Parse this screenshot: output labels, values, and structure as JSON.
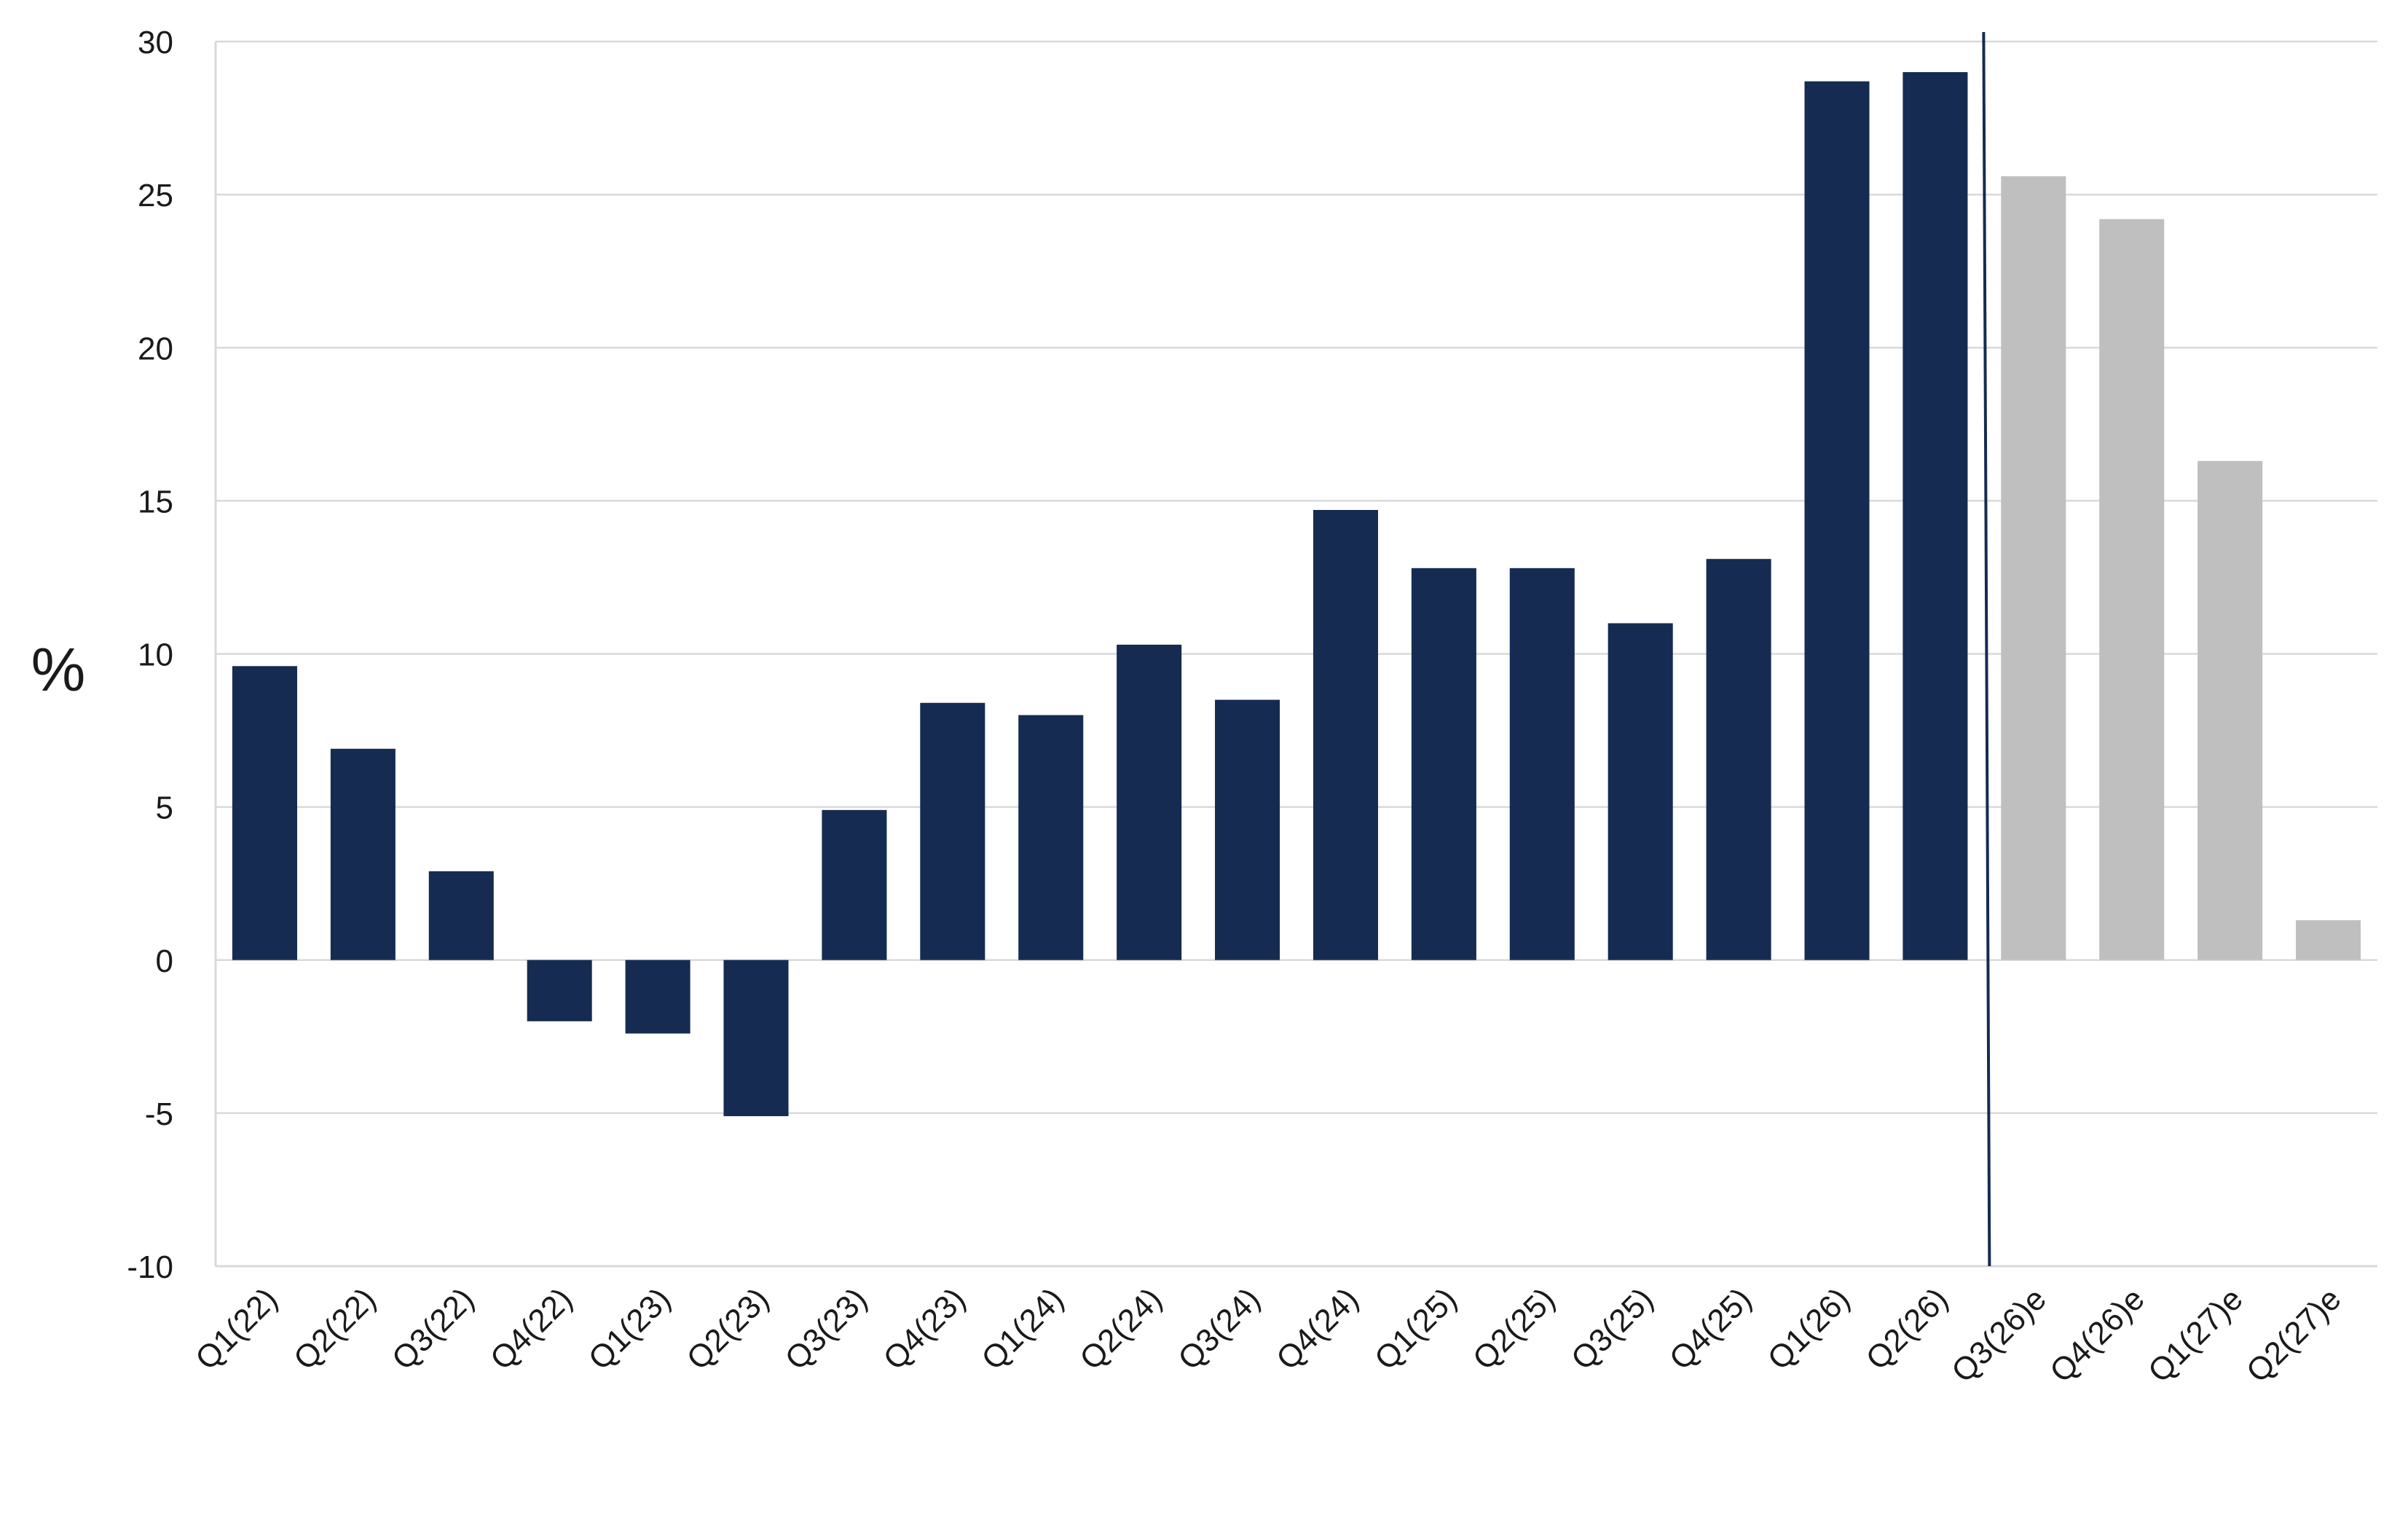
{
  "chart_data": {
    "type": "bar",
    "title": "",
    "xlabel": "",
    "ylabel": "%",
    "ylim": [
      -10,
      30
    ],
    "yticks": [
      -10,
      -5,
      0,
      5,
      10,
      15,
      20,
      25,
      30
    ],
    "grid": true,
    "categories": [
      "Q1(22)",
      "Q2(22)",
      "Q3(22)",
      "Q4(22)",
      "Q1(23)",
      "Q2(23)",
      "Q3(23)",
      "Q4(23)",
      "Q1(24)",
      "Q2(24)",
      "Q3(24)",
      "Q4(24)",
      "Q1(25)",
      "Q2(25)",
      "Q3(25)",
      "Q4(25)",
      "Q1(26)",
      "Q2(26)",
      "Q3(26)e",
      "Q4(26)e",
      "Q1(27)e",
      "Q2(27)e"
    ],
    "series": [
      {
        "values": [
          9.6,
          6.9,
          2.9,
          -2.0,
          -2.4,
          -5.1,
          4.9,
          8.4,
          8.0,
          10.3,
          8.5,
          14.7,
          12.8,
          12.8,
          11.0,
          13.1,
          28.7,
          29.0,
          25.6,
          24.2,
          16.3,
          1.3
        ]
      }
    ],
    "actual_count": 18,
    "colors": {
      "actual": "#152b52",
      "estimate": "#bfbfbf",
      "divider": "#152b52",
      "grid": "#d9d9d9",
      "text": "#1a1a1a"
    }
  }
}
